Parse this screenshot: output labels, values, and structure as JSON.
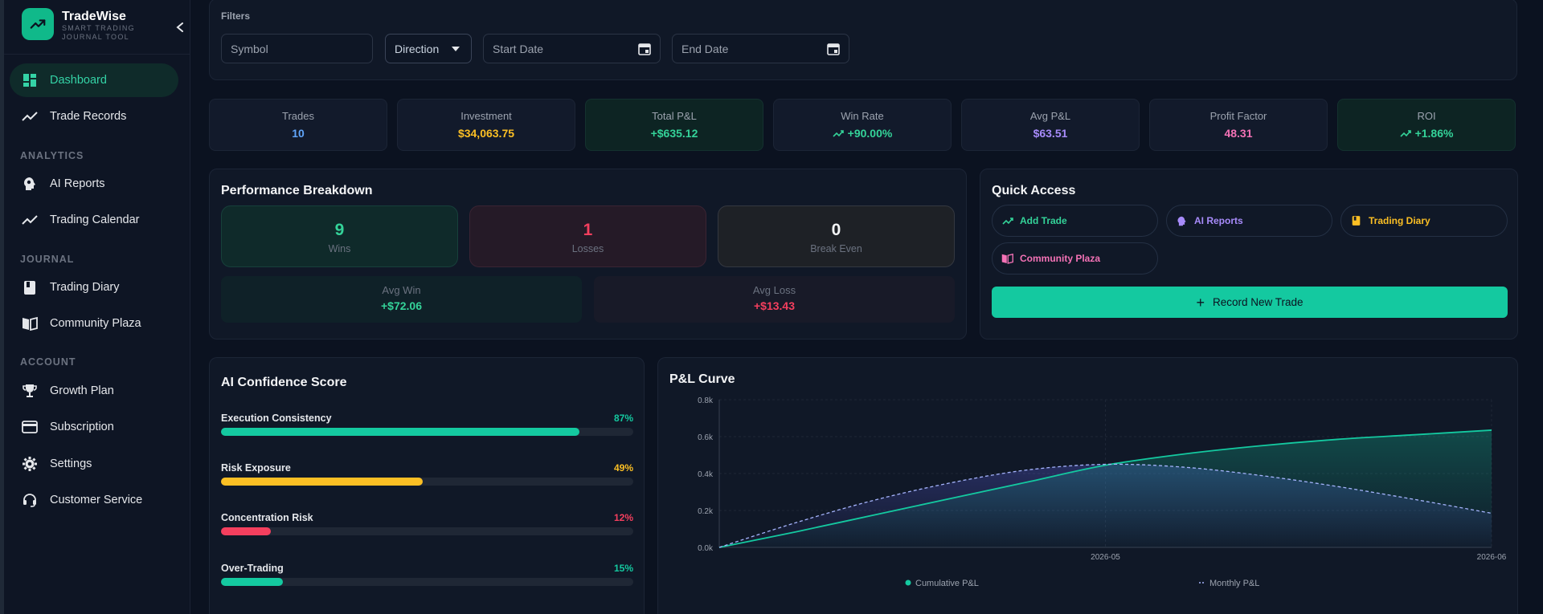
{
  "sidebar": {
    "brand_name": "TradeWise",
    "brand_tagline": "SMART TRADING JOURNAL TOOL",
    "items": [
      {
        "label": "Dashboard",
        "icon": "dashboard-icon",
        "active": true
      },
      {
        "label": "Trade Records",
        "icon": "trend-icon"
      },
      {
        "label": "AI Reports",
        "icon": "ai-head-icon"
      },
      {
        "label": "Trading Calendar",
        "icon": "trend-icon"
      },
      {
        "label": "Trading Diary",
        "icon": "book-icon"
      },
      {
        "label": "Community Plaza",
        "icon": "open-book-icon"
      },
      {
        "label": "Growth Plan",
        "icon": "trophy-icon"
      },
      {
        "label": "Subscription",
        "icon": "card-icon"
      },
      {
        "label": "Settings",
        "icon": "gear-icon"
      },
      {
        "label": "Customer Service",
        "icon": "headset-icon"
      }
    ],
    "sections": [
      "ANALYTICS",
      "JOURNAL",
      "ACCOUNT"
    ]
  },
  "filters": {
    "title": "Filters",
    "symbol_placeholder": "Symbol",
    "direction_label": "Direction",
    "start_placeholder": "Start Date",
    "end_placeholder": "End Date"
  },
  "stats": [
    {
      "label": "Trades",
      "value": "10",
      "color": "#60a5fa"
    },
    {
      "label": "Investment",
      "value": "$34,063.75",
      "color": "#fbbf24"
    },
    {
      "label": "Total P&L",
      "value": "+$635.12",
      "color": "#34d399"
    },
    {
      "label": "Win Rate",
      "value": "+90.00%",
      "color": "#34d399"
    },
    {
      "label": "Avg P&L",
      "value": "$63.51",
      "color": "#a78bfa"
    },
    {
      "label": "Profit Factor",
      "value": "48.31",
      "color": "#f472b6"
    },
    {
      "label": "ROI",
      "value": "+1.86%",
      "color": "#34d399"
    }
  ],
  "performance": {
    "title": "Performance Breakdown",
    "wins": {
      "value": "9",
      "label": "Wins"
    },
    "losses": {
      "value": "1",
      "label": "Losses"
    },
    "break_even": {
      "value": "0",
      "label": "Break Even"
    },
    "avg_win": {
      "label": "Avg Win",
      "value": "+$72.06"
    },
    "avg_loss": {
      "label": "Avg Loss",
      "value": "+$13.43"
    }
  },
  "quick_access": {
    "title": "Quick Access",
    "items": [
      {
        "label": "Add Trade",
        "color": "#34d399"
      },
      {
        "label": "AI Reports",
        "color": "#a78bfa"
      },
      {
        "label": "Trading Diary",
        "color": "#fbbf24"
      },
      {
        "label": "Community Plaza",
        "color": "#f472b6"
      }
    ],
    "record_label": "Record New Trade"
  },
  "confidence": {
    "title": "AI Confidence Score",
    "items": [
      {
        "label": "Execution Consistency",
        "pct": "87%",
        "value": 0.87,
        "color": "#14c9a0"
      },
      {
        "label": "Risk Exposure",
        "pct": "49%",
        "value": 0.49,
        "color": "#fbbf24"
      },
      {
        "label": "Concentration Risk",
        "pct": "12%",
        "value": 0.12,
        "color": "#f43f5e"
      },
      {
        "label": "Over-Trading",
        "pct": "15%",
        "value": 0.15,
        "color": "#14c9a0"
      }
    ]
  },
  "chart_data": {
    "type": "line",
    "title": "P&L Curve",
    "y_ticks": [
      "0.0k",
      "0.2k",
      "0.4k",
      "0.6k",
      "0.8k"
    ],
    "ylim": [
      0,
      800
    ],
    "x_ticks": [
      "2026-05",
      "2026-06"
    ],
    "x_tick_positions": [
      0.5,
      1.0
    ],
    "grid": true,
    "legend_position": "bottom",
    "series": [
      {
        "name": "Cumulative P&L",
        "style": "solid",
        "color": "#14c9a0",
        "x": [
          0,
          0.1,
          0.2,
          0.3,
          0.4,
          0.5,
          0.6,
          0.7,
          0.8,
          0.9,
          1.0
        ],
        "values": [
          0,
          85,
          175,
          265,
          355,
          445,
          505,
          550,
          585,
          610,
          635
        ]
      },
      {
        "name": "Monthly P&L",
        "style": "dashed",
        "color": "#a5b4fc",
        "x": [
          0,
          0.1,
          0.2,
          0.3,
          0.4,
          0.5,
          0.6,
          0.7,
          0.8,
          0.9,
          1.0
        ],
        "values": [
          0,
          135,
          255,
          350,
          420,
          450,
          435,
          390,
          330,
          260,
          185
        ]
      }
    ]
  }
}
